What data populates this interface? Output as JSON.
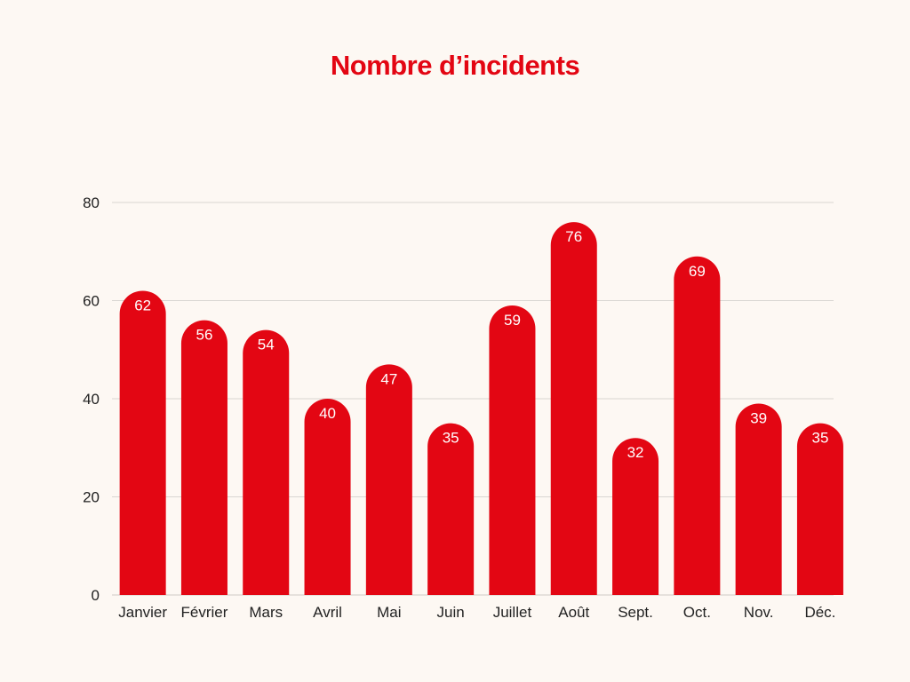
{
  "colors": {
    "background": "#fdf8f3",
    "bar": "#e30613",
    "title": "#e30613",
    "grid": "#d9d6d2",
    "text": "#222222",
    "value_label": "#ffffff"
  },
  "chart_data": {
    "type": "bar",
    "title": "Nombre d’incidents",
    "xlabel": "",
    "ylabel": "",
    "categories": [
      "Janvier",
      "Février",
      "Mars",
      "Avril",
      "Mai",
      "Juin",
      "Juillet",
      "Août",
      "Sept.",
      "Oct.",
      "Nov.",
      "Déc."
    ],
    "values": [
      62,
      56,
      54,
      40,
      47,
      35,
      59,
      76,
      32,
      69,
      39,
      35
    ],
    "ylim": [
      0,
      80
    ],
    "yticks": [
      0,
      20,
      40,
      60,
      80
    ],
    "grid": true,
    "data_labels": true,
    "bar_style": "rounded-top"
  }
}
